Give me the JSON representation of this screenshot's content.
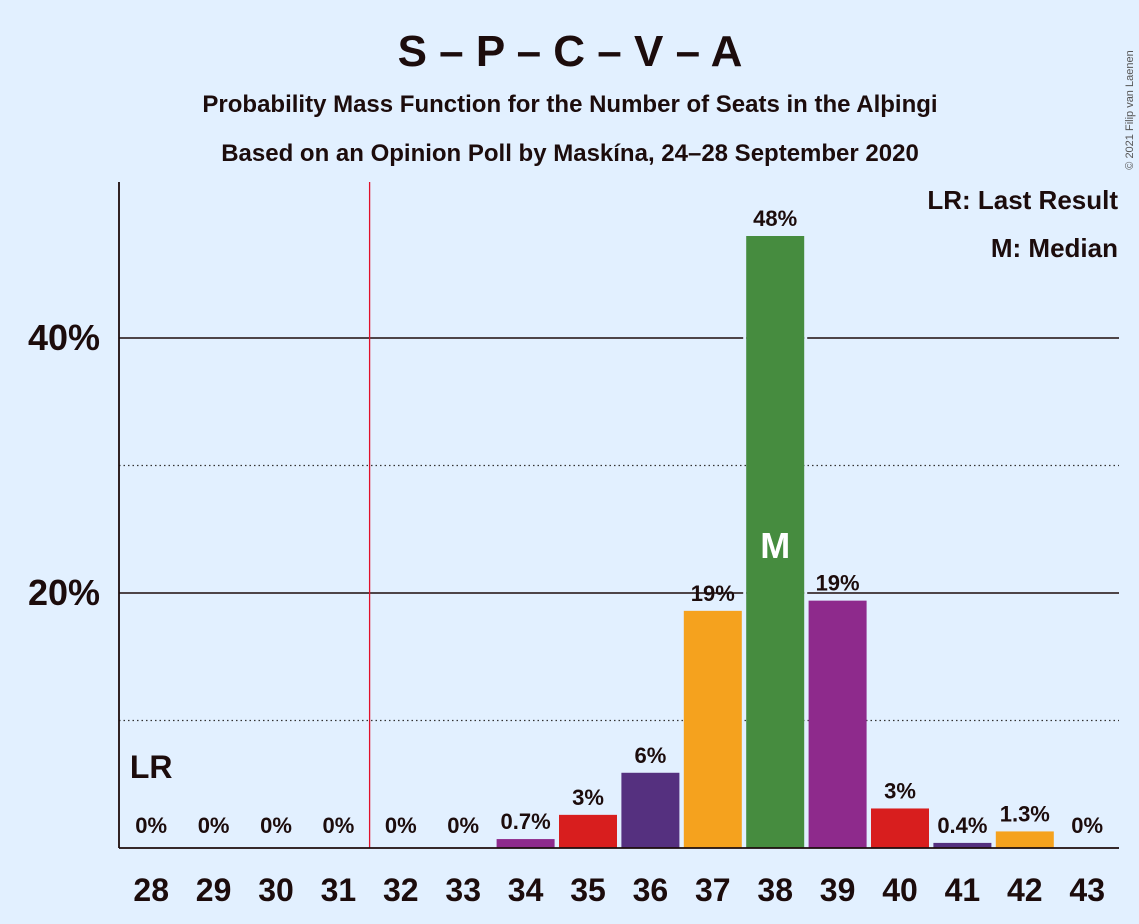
{
  "title": "S – P – C – V – A",
  "subtitle1": "Probability Mass Function for the Number of Seats in the Alþingi",
  "subtitle2": "Based on an Opinion Poll by Maskína, 24–28 September 2020",
  "legend": {
    "lr": "LR: Last Result",
    "median": "M: Median"
  },
  "credit": "© 2021 Filip van Laenen",
  "markers": {
    "lr_label": "LR",
    "median_label": "M"
  },
  "chart_data": {
    "type": "bar",
    "categories": [
      "28",
      "29",
      "30",
      "31",
      "32",
      "33",
      "34",
      "35",
      "36",
      "37",
      "38",
      "39",
      "40",
      "41",
      "42",
      "43"
    ],
    "values": [
      0,
      0,
      0,
      0,
      0,
      0,
      0.7,
      2.6,
      5.9,
      18.6,
      48.0,
      19.4,
      3.1,
      0.4,
      1.3,
      0
    ],
    "data_labels": [
      "0%",
      "0%",
      "0%",
      "0%",
      "0%",
      "0%",
      "0.7%",
      "3%",
      "6%",
      "19%",
      "48%",
      "19%",
      "3%",
      "0.4%",
      "1.3%",
      "0%"
    ],
    "colors": [
      "#e02020",
      "#e02020",
      "#e02020",
      "#e02020",
      "#e02020",
      "#e02020",
      "#8e2a8c",
      "#d81e1e",
      "#55307f",
      "#f5a21e",
      "#468c3f",
      "#8e2a8c",
      "#d81e1e",
      "#55307f",
      "#f5a21e",
      "#e02020"
    ],
    "yticks": [
      {
        "value": 20,
        "label": "20%"
      },
      {
        "value": 40,
        "label": "40%"
      }
    ],
    "minor_gridlines": [
      10,
      30
    ],
    "ylim": [
      0,
      52
    ],
    "last_result_seat": "28",
    "majority_threshold_after": "31",
    "median_seat": "38"
  }
}
